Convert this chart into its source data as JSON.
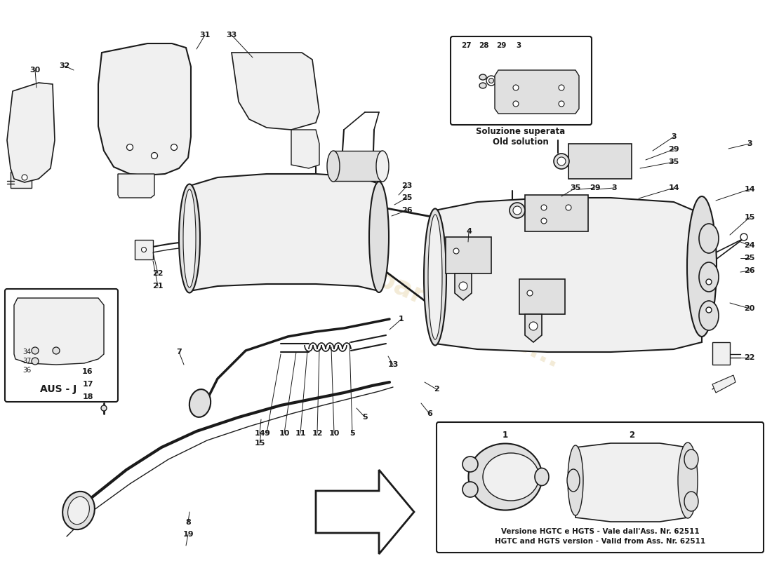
{
  "bg_color": "#ffffff",
  "line_color": "#1a1a1a",
  "fill_light": "#f0f0f0",
  "fill_mid": "#e0e0e0",
  "fill_dark": "#c8c8c8",
  "box1_title1": "Soluzione superata",
  "box1_title2": "Old solution",
  "box2_title1": "Versione HGTC e HGTS - Vale dall'Ass. Nr. 62511",
  "box2_title2": "HGTC and HGTS version - Valid from Ass. Nr. 62511",
  "aus_j": "AUS - J"
}
